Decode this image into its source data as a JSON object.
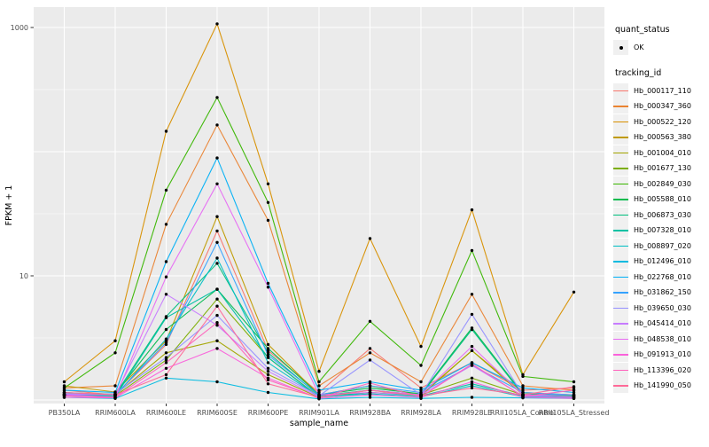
{
  "chart_data": {
    "type": "line",
    "title": "",
    "xlabel": "sample_name",
    "ylabel": "FPKM + 1",
    "y_scale": "log10",
    "ylim": [
      1,
      1200
    ],
    "y_tick_labels": [
      "1000",
      "10"
    ],
    "y_tick_values": [
      1000,
      10
    ],
    "y_gridlines_major": [
      1,
      10,
      100,
      1000
    ],
    "y_gridlines_minor": [
      3.162,
      31.62,
      316.2
    ],
    "grid": true,
    "legend_position": "right",
    "point_color": "#000000",
    "panel_bg": "#ebebeb",
    "grid_color": "#ffffff",
    "tick_label_color": "#4d4d4d",
    "categories": [
      "PB350LA",
      "RRIM600LA",
      "RRIM600LE",
      "RRIM600SE",
      "RRIM600PE",
      "RRIM901LA",
      "RRIM928BA",
      "RRIM928LA",
      "RRIM928LE",
      "RRII105LA_Control",
      "RRII105LA_Stressed"
    ],
    "series": [
      {
        "name": "Hb_000117_110",
        "color": "#F8766D",
        "values": [
          1.2,
          1.1,
          2.8,
          23,
          2.5,
          1.15,
          2.6,
          1.25,
          2.0,
          1.2,
          1.25
        ]
      },
      {
        "name": "Hb_000347_360",
        "color": "#EA8331",
        "values": [
          1.25,
          1.3,
          26,
          164,
          28,
          1.3,
          2.4,
          1.4,
          7.1,
          1.3,
          1.2
        ]
      },
      {
        "name": "Hb_000522_120",
        "color": "#D89000",
        "values": [
          1.4,
          3.0,
          146,
          1070,
          55,
          1.7,
          20,
          2.7,
          34,
          1.6,
          7.4
        ]
      },
      {
        "name": "Hb_000563_380",
        "color": "#C09B00",
        "values": [
          1.3,
          1.16,
          3.0,
          30,
          2.8,
          1.1,
          1.3,
          1.1,
          2.5,
          1.15,
          1.1
        ]
      },
      {
        "name": "Hb_001004_010",
        "color": "#A3A500",
        "values": [
          1.15,
          1.1,
          2.4,
          3.0,
          1.6,
          1.05,
          1.2,
          1.08,
          2.5,
          1.1,
          1.08
        ]
      },
      {
        "name": "Hb_001677_130",
        "color": "#7CAE00",
        "values": [
          1.1,
          1.08,
          2.1,
          6.5,
          2.2,
          1.06,
          1.15,
          1.1,
          1.5,
          1.1,
          1.05
        ]
      },
      {
        "name": "Hb_002849_030",
        "color": "#39B600",
        "values": [
          1.25,
          2.4,
          49,
          273,
          39,
          1.4,
          4.3,
          1.9,
          16,
          1.55,
          1.4
        ]
      },
      {
        "name": "Hb_005588_010",
        "color": "#00BB4E",
        "values": [
          1.1,
          1.12,
          3.7,
          7.8,
          2.6,
          1.1,
          1.25,
          1.12,
          3.8,
          1.12,
          1.1
        ]
      },
      {
        "name": "Hb_006873_030",
        "color": "#00BF7D",
        "values": [
          1.12,
          1.1,
          4.7,
          12.6,
          2.4,
          1.08,
          1.2,
          1.1,
          3.7,
          1.1,
          1.08
        ]
      },
      {
        "name": "Hb_007328_010",
        "color": "#00C1A3",
        "values": [
          1.08,
          1.06,
          4.6,
          7.8,
          2.2,
          1.05,
          1.15,
          1.08,
          1.35,
          1.08,
          1.06
        ]
      },
      {
        "name": "Hb_008897_020",
        "color": "#00BFC4",
        "values": [
          1.1,
          1.08,
          3.1,
          13.9,
          2.0,
          1.06,
          1.12,
          1.06,
          1.3,
          1.06,
          1.05
        ]
      },
      {
        "name": "Hb_012496_010",
        "color": "#00BAE0",
        "values": [
          1.05,
          1.03,
          1.5,
          1.4,
          1.15,
          1.02,
          1.05,
          1.03,
          1.05,
          1.04,
          1.03
        ]
      },
      {
        "name": "Hb_022768_010",
        "color": "#00B0F6",
        "values": [
          1.2,
          1.15,
          13,
          89,
          8.7,
          1.2,
          1.4,
          1.2,
          2.0,
          1.25,
          1.15
        ]
      },
      {
        "name": "Hb_031862_150",
        "color": "#35A2FF",
        "values": [
          1.15,
          1.1,
          2.9,
          18.6,
          2.3,
          1.1,
          1.3,
          1.15,
          1.9,
          1.15,
          1.1
        ]
      },
      {
        "name": "Hb_039650_030",
        "color": "#9590FF",
        "values": [
          1.1,
          1.12,
          2.2,
          4.8,
          1.8,
          1.08,
          2.1,
          1.1,
          4.9,
          1.1,
          1.1
        ]
      },
      {
        "name": "Hb_045414_010",
        "color": "#C77CFF",
        "values": [
          1.12,
          1.1,
          7.1,
          4.0,
          1.7,
          1.06,
          1.2,
          1.1,
          1.9,
          1.08,
          1.06
        ]
      },
      {
        "name": "Hb_048538_010",
        "color": "#E76BF3",
        "values": [
          1.1,
          1.05,
          9.8,
          55,
          8.1,
          1.1,
          1.15,
          1.1,
          2.7,
          1.1,
          1.05
        ]
      },
      {
        "name": "Hb_091913_010",
        "color": "#FA62DB",
        "values": [
          1.05,
          1.04,
          1.8,
          2.6,
          1.5,
          1.03,
          1.1,
          1.05,
          1.4,
          1.05,
          1.03
        ]
      },
      {
        "name": "Hb_113396_020",
        "color": "#FF62BC",
        "values": [
          1.08,
          1.05,
          2.0,
          4.2,
          1.45,
          1.04,
          1.37,
          1.06,
          1.95,
          1.07,
          1.2
        ]
      },
      {
        "name": "Hb_141990_050",
        "color": "#FF6A98",
        "values": [
          1.15,
          1.1,
          1.6,
          5.7,
          1.35,
          1.05,
          1.2,
          1.08,
          1.25,
          1.1,
          1.28
        ]
      }
    ]
  },
  "legend": {
    "quant_status_title": "quant_status",
    "quant_status_items": [
      {
        "label": "OK"
      }
    ],
    "tracking_id_title": "tracking_id"
  }
}
